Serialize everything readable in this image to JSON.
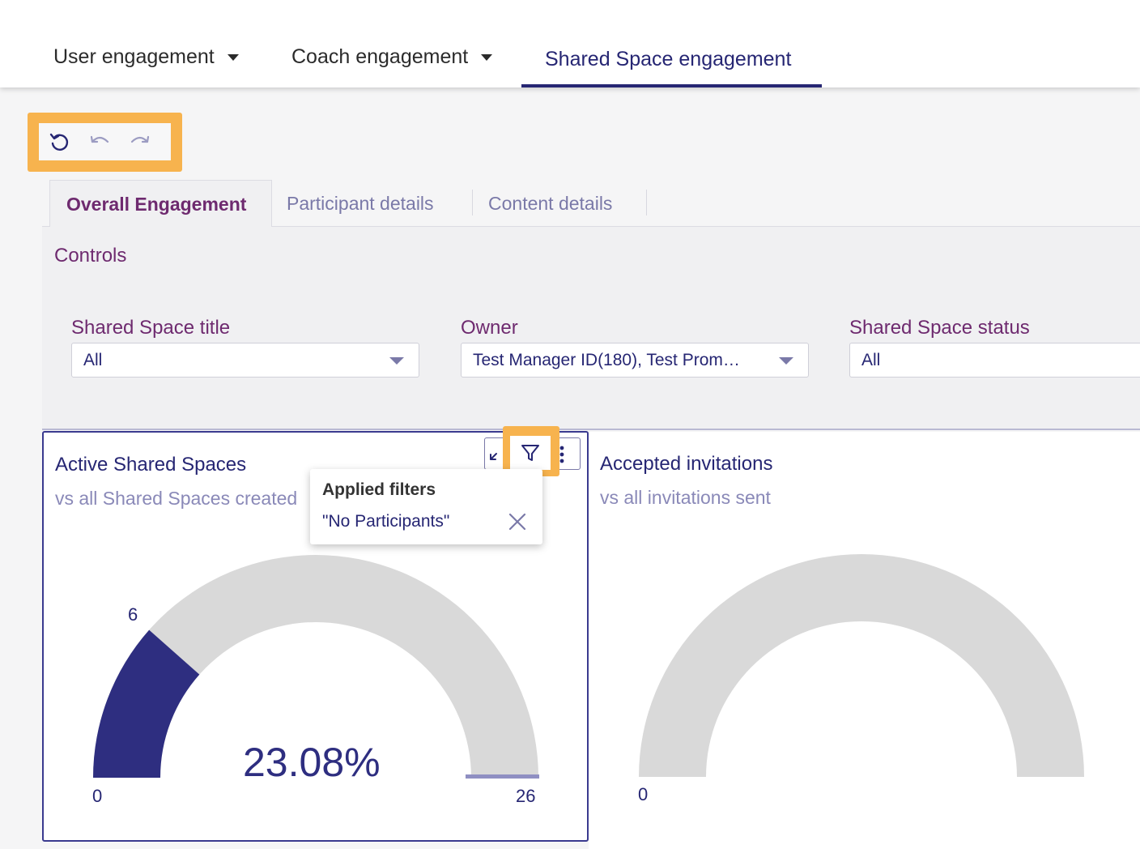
{
  "nav": {
    "tabs": [
      {
        "label": "User engagement",
        "has_dropdown": true
      },
      {
        "label": "Coach engagement",
        "has_dropdown": true
      },
      {
        "label": "Shared Space engagement",
        "has_dropdown": false,
        "active": true
      }
    ]
  },
  "toolbar": {
    "buttons": [
      "reset-icon",
      "undo-icon",
      "redo-icon"
    ]
  },
  "sheet_tabs": [
    {
      "label": "Overall Engagement",
      "active": true
    },
    {
      "label": "Participant details"
    },
    {
      "label": "Content details"
    }
  ],
  "controls": {
    "title": "Controls",
    "fields": [
      {
        "label": "Shared Space title",
        "value": "All"
      },
      {
        "label": "Owner",
        "value": "Test Manager ID(180), Test Prom…"
      },
      {
        "label": "Shared Space status",
        "value": "All"
      }
    ]
  },
  "cards": [
    {
      "title": "Active Shared Spaces",
      "subtitle": "vs all Shared Spaces created",
      "gauge": {
        "min": "0",
        "max": "26",
        "value": "6",
        "percent_label": "23.08%",
        "fraction": 0.2308
      }
    },
    {
      "title": "Accepted invitations",
      "subtitle": "vs all invitations sent",
      "gauge": {
        "min": "0",
        "fraction": 0
      }
    }
  ],
  "popover": {
    "title": "Applied filters",
    "item": "\"No Participants\""
  },
  "colors": {
    "primary": "#262673",
    "accent": "#6e2a6f",
    "highlight": "#f7b34e",
    "gauge_fill": "#2e2e80",
    "gauge_track": "#d9d9d9"
  }
}
